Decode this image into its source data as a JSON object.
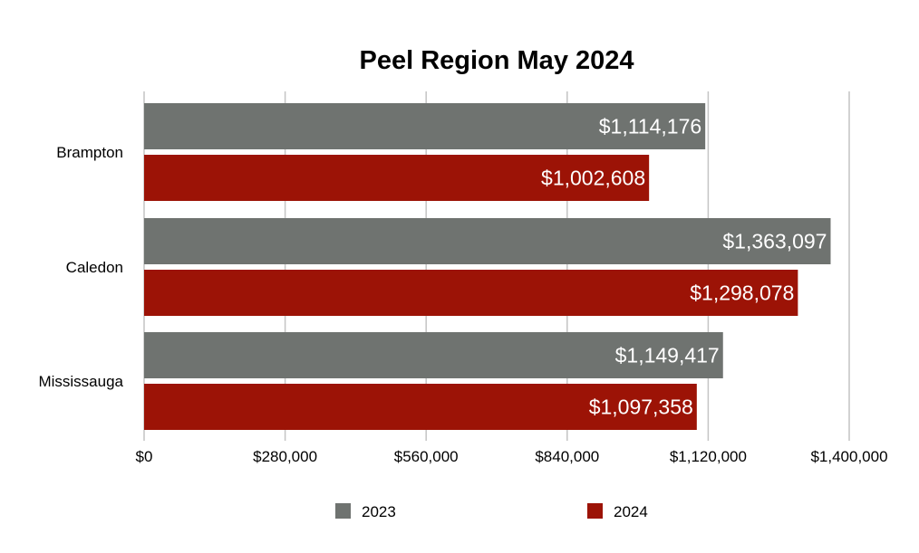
{
  "chart_data": {
    "type": "bar",
    "orientation": "horizontal",
    "title": "Peel Region May 2024",
    "xlabel": "",
    "ylabel": "",
    "categories": [
      "Brampton",
      "Caledon",
      "Mississauga"
    ],
    "series": [
      {
        "name": "2023",
        "color": "#6f7370",
        "values": [
          1114176,
          1363097,
          1149417
        ],
        "labels": [
          "$1,114,176",
          "$1,363,097",
          "$1,149,417"
        ]
      },
      {
        "name": "2024",
        "color": "#9c1306",
        "values": [
          1002608,
          1298078,
          1097358
        ],
        "labels": [
          "$1,002,608",
          "$1,298,078",
          "$1,097,358"
        ]
      }
    ],
    "xlim": [
      0,
      1400000
    ],
    "x_ticks": [
      0,
      280000,
      560000,
      840000,
      1120000,
      1400000
    ],
    "x_tick_labels": [
      "$0",
      "$280,000",
      "$560,000",
      "$840,000",
      "$1,120,000",
      "$1,400,000"
    ],
    "grid": true,
    "legend_position": "bottom"
  }
}
